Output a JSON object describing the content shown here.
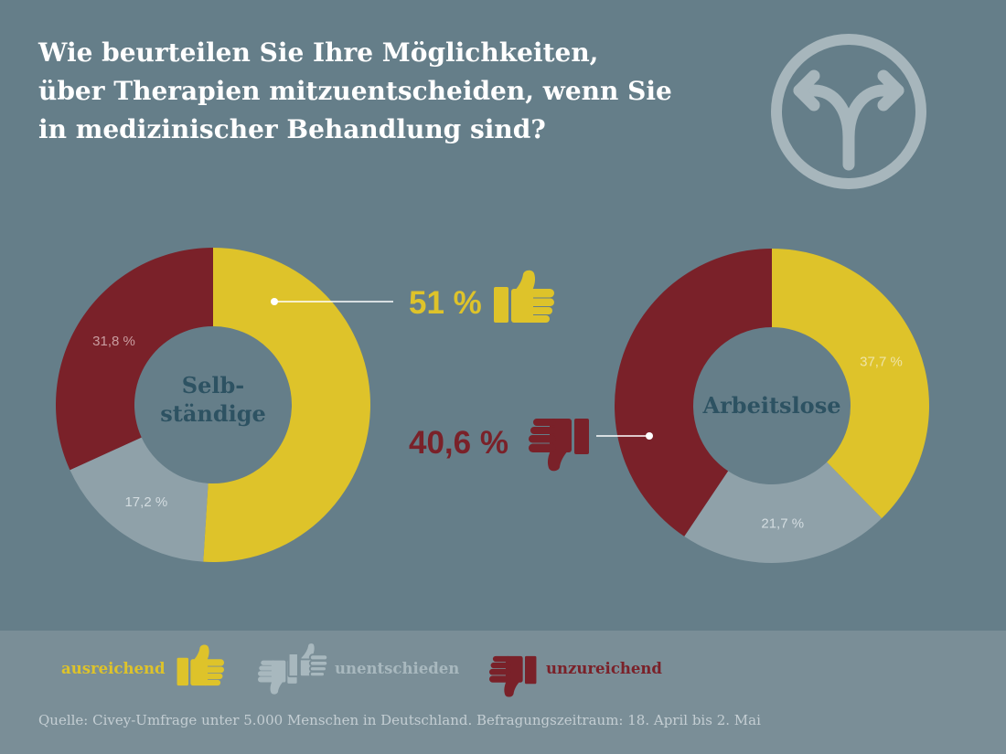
{
  "title": {
    "lines": [
      "Wie beurteilen Sie Ihre Möglichkeiten,",
      "über Therapien mitzuentscheiden, wenn Sie",
      "in medizinischer Behandlung sind?"
    ]
  },
  "header_icon": "fork-arrow-icon",
  "colors": {
    "ausreichend": "#DEC32A",
    "unentschieden": "#8FA1A9",
    "unzureichend": "#7A2129",
    "background": "#657E89",
    "legend_band": "#7A8E97",
    "center_label": "#2D5262"
  },
  "chart_data": [
    {
      "type": "pie",
      "donut": true,
      "center_label": [
        "Selb-",
        "ständige"
      ],
      "slices": [
        {
          "category": "ausreichend",
          "value": 51.0,
          "label": null
        },
        {
          "category": "unentschieden",
          "value": 17.2,
          "label": "17,2 %"
        },
        {
          "category": "unzureichend",
          "value": 31.8,
          "label": "31,8 %"
        }
      ],
      "callout": {
        "category": "ausreichend",
        "label": "51 %",
        "icon": "thumbs-up-icon"
      }
    },
    {
      "type": "pie",
      "donut": true,
      "center_label": [
        "Arbeitslose"
      ],
      "slices": [
        {
          "category": "ausreichend",
          "value": 37.7,
          "label": "37,7 %"
        },
        {
          "category": "unentschieden",
          "value": 21.7,
          "label": "21,7 %"
        },
        {
          "category": "unzureichend",
          "value": 40.6,
          "label": null
        }
      ],
      "callout": {
        "category": "unzureichend",
        "label": "40,6 %",
        "icon": "thumbs-down-icon"
      }
    }
  ],
  "legend": {
    "items": [
      {
        "category": "ausreichend",
        "label": "ausreichend",
        "icon": "thumbs-up-icon"
      },
      {
        "category": "unentschieden",
        "label": "unentschieden",
        "icon": "thumbs-up-down-icon"
      },
      {
        "category": "unzureichend",
        "label": "unzureichend",
        "icon": "thumbs-down-icon"
      }
    ]
  },
  "footer": {
    "source": "Quelle: Civey-Umfrage unter 5.000 Menschen in Deutschland. Befragungszeitraum: 18. April bis 2. Mai"
  }
}
